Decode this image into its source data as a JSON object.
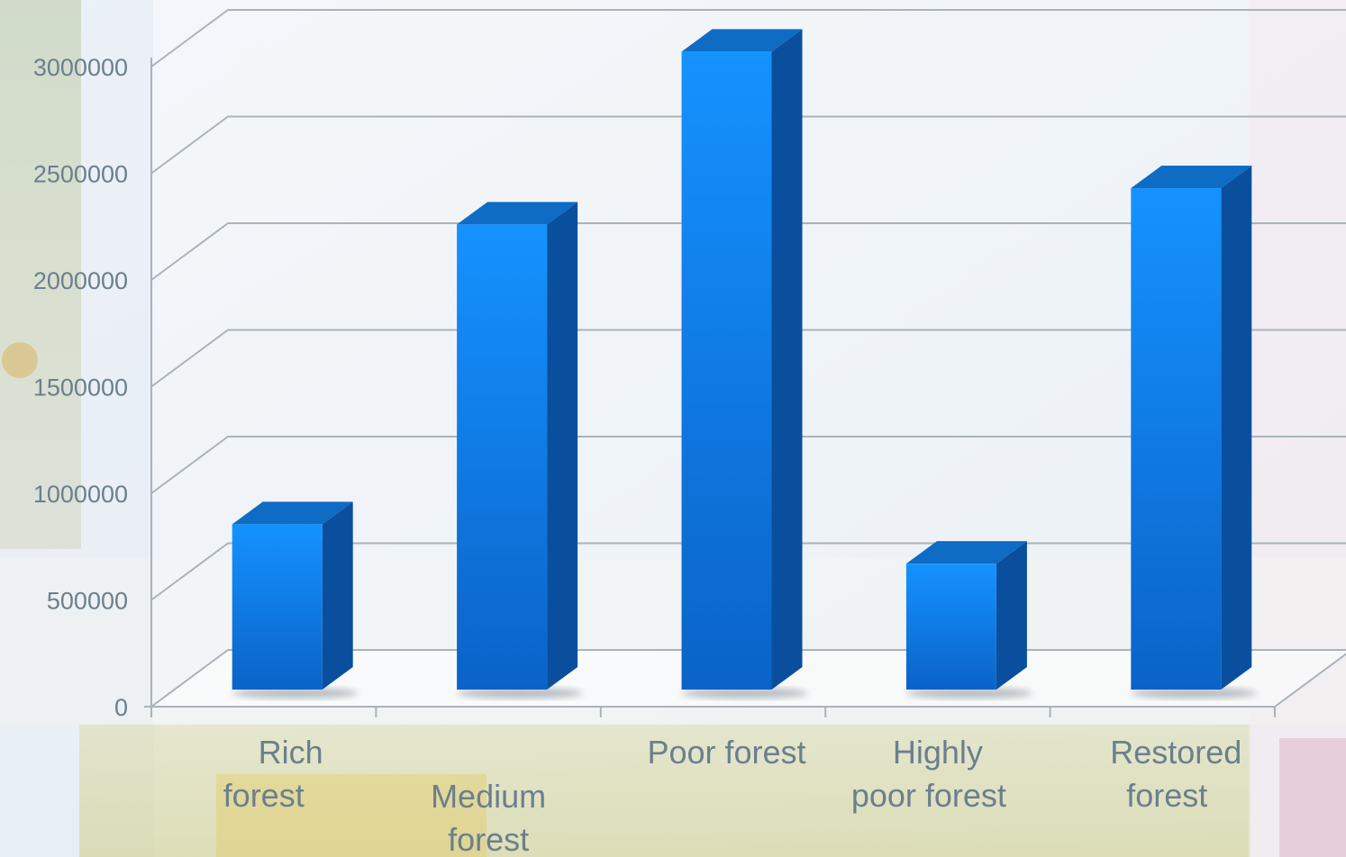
{
  "chart_data": {
    "type": "bar",
    "title": "",
    "xlabel": "",
    "ylabel": "",
    "categories": [
      "Rich forest",
      "Medium forest",
      "Poor forest",
      "Highly poor forest",
      "Restored forest"
    ],
    "category_label_lines": [
      [
        "Rich",
        "forest"
      ],
      [
        "Medium",
        "forest"
      ],
      [
        "Poor forest"
      ],
      [
        "Highly",
        "poor forest"
      ],
      [
        "Restored",
        "forest"
      ]
    ],
    "values": [
      775000,
      2180000,
      2990000,
      590000,
      2350000
    ],
    "ylim": [
      0,
      3000000
    ],
    "yticks": [
      0,
      500000,
      1000000,
      1500000,
      2000000,
      2500000,
      3000000
    ],
    "grid": true,
    "three_d": true,
    "colors": {
      "bar_front_top": "#1592ff",
      "bar_front_bottom": "#0a63c8",
      "bar_side": "#0a4f9e",
      "bar_top": "#0f6cc4",
      "gridline": "#a9b3bb",
      "text": "#6b7f8e"
    }
  }
}
